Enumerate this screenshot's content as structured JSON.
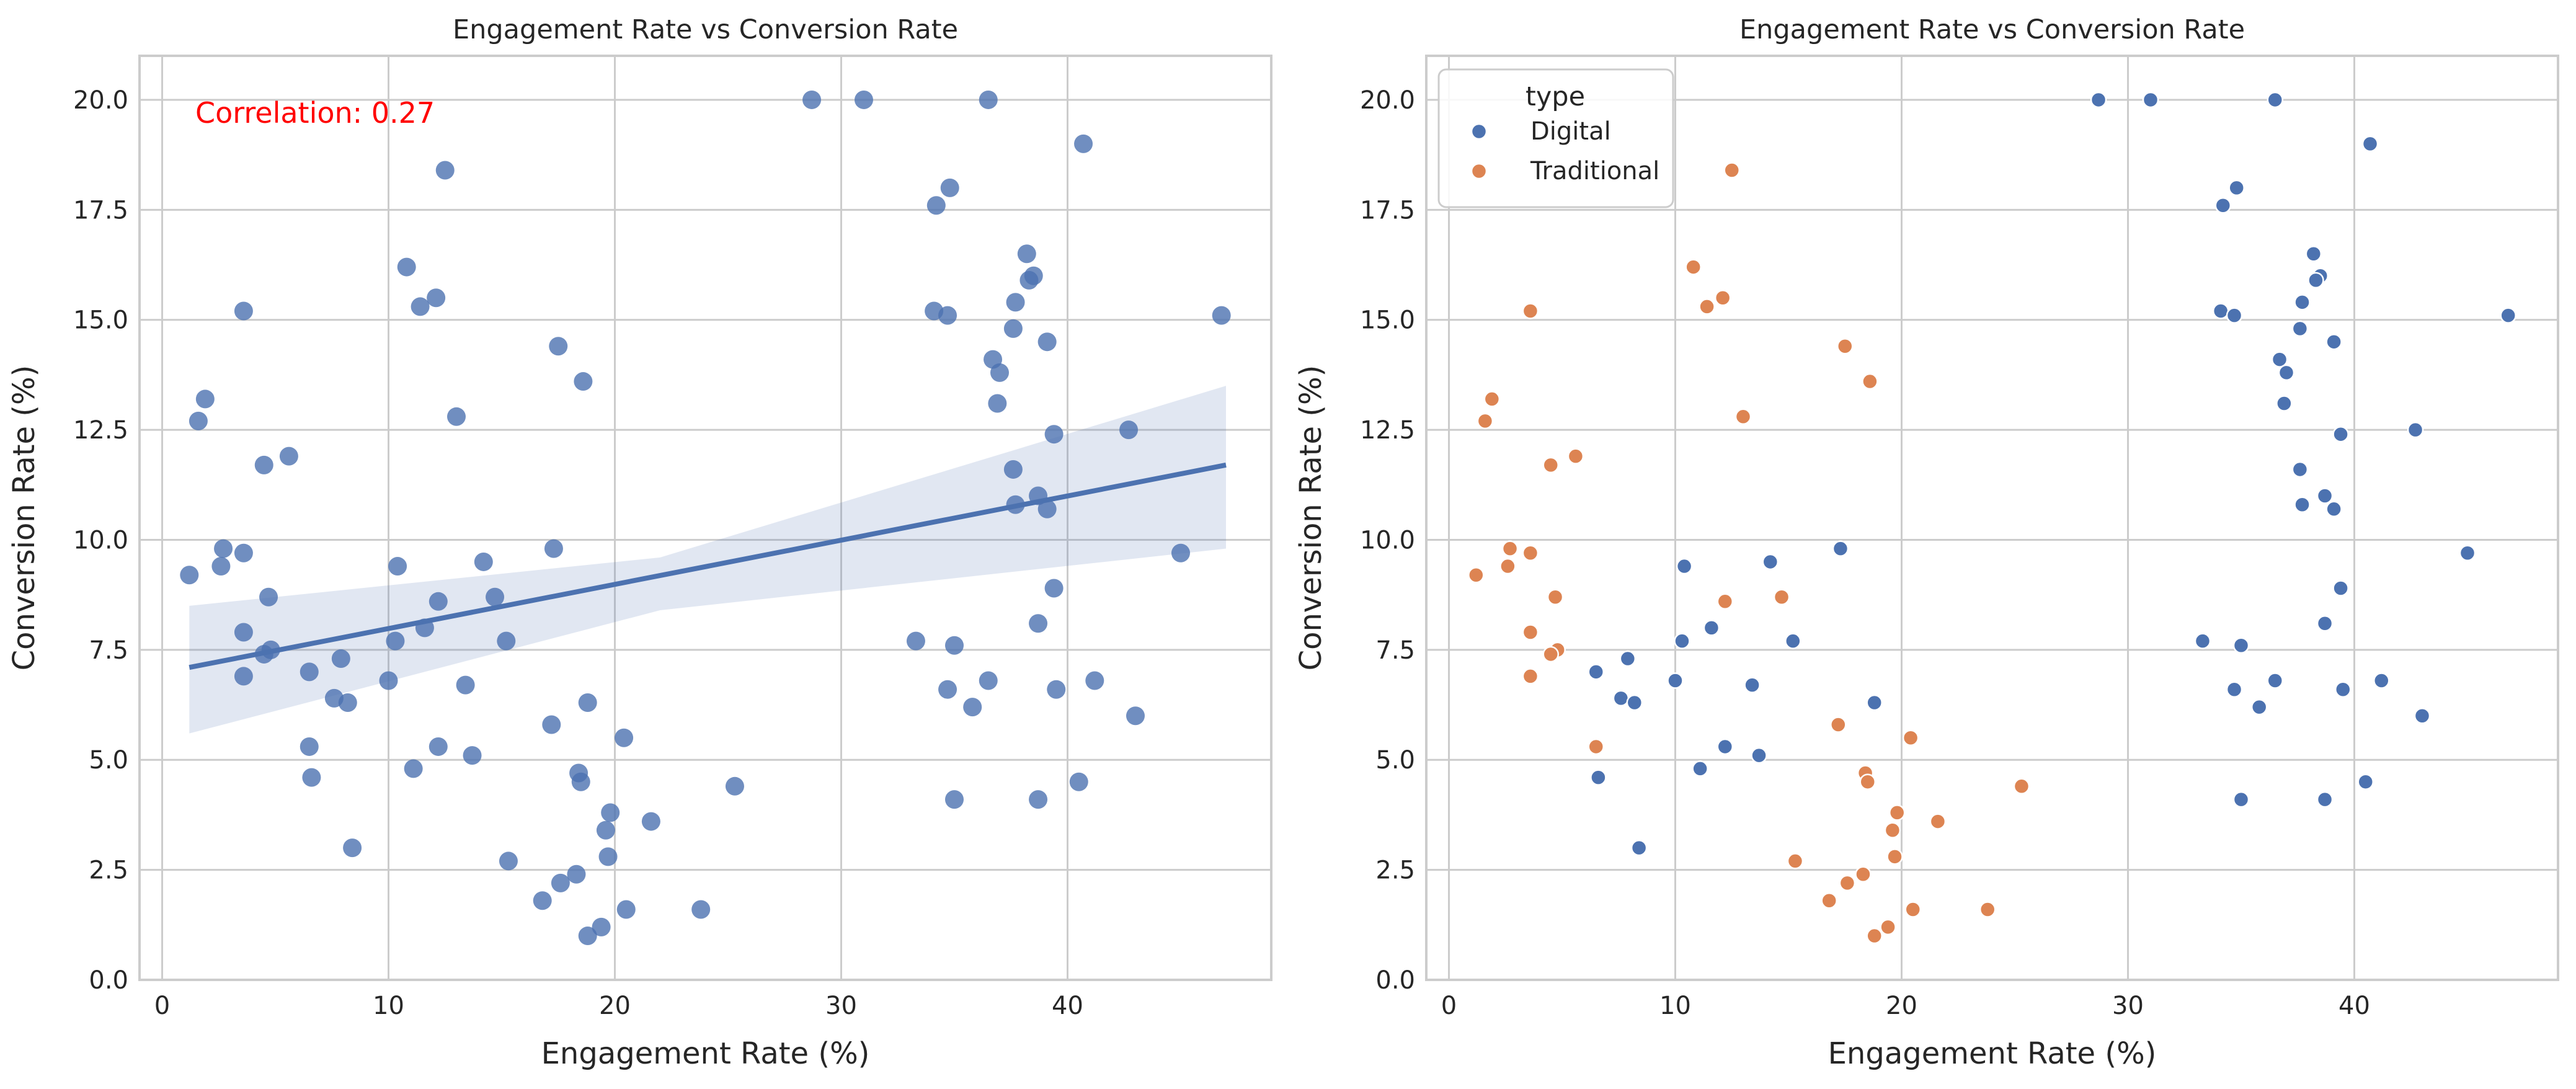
{
  "chart_data": [
    {
      "type": "scatter",
      "title": "Engagement Rate vs Conversion Rate",
      "xlabel": "Engagement Rate (%)",
      "ylabel": "Conversion Rate (%)",
      "xlim": [
        -1,
        49
      ],
      "ylim": [
        0,
        21
      ],
      "xticks": [
        "0",
        "10",
        "20",
        "30",
        "40"
      ],
      "yticks": [
        "0.0",
        "2.5",
        "5.0",
        "7.5",
        "10.0",
        "12.5",
        "15.0",
        "17.5",
        "20.0"
      ],
      "grid": true,
      "annotation": {
        "text": "Correlation: 0.27",
        "color": "#ff0000"
      },
      "regression": {
        "x": [
          1.2,
          47
        ],
        "y": [
          7.1,
          11.7
        ],
        "ci_lower": [
          5.6,
          9.8
        ],
        "ci_upper": [
          8.5,
          13.5
        ],
        "ci_mid_x": 22,
        "ci_mid_lower": [
          8.4
        ],
        "ci_mid_upper": [
          9.6
        ],
        "color": "#4c72b0"
      },
      "series": [
        {
          "color": "#4c72b0",
          "points": "all"
        }
      ]
    },
    {
      "type": "scatter",
      "title": "Engagement Rate vs Conversion Rate",
      "xlabel": "Engagement Rate (%)",
      "ylabel": "Conversion Rate (%)",
      "xlim": [
        -1,
        49
      ],
      "ylim": [
        0,
        21
      ],
      "xticks": [
        "0",
        "10",
        "20",
        "30",
        "40"
      ],
      "yticks": [
        "0.0",
        "2.5",
        "5.0",
        "7.5",
        "10.0",
        "12.5",
        "15.0",
        "17.5",
        "20.0"
      ],
      "grid": true,
      "legend": {
        "title": "type",
        "placement": "top-left"
      },
      "series": [
        {
          "name": "Digital",
          "color": "#4c72b0",
          "x": [
            28.7,
            31.0,
            36.5,
            40.7,
            34.8,
            34.2,
            38.2,
            38.5,
            38.3,
            37.7,
            34.1,
            34.7,
            46.8,
            37.6,
            39.1,
            36.7,
            37.0,
            36.9,
            42.7,
            39.4,
            37.6,
            38.7,
            37.7,
            39.1,
            45.0,
            39.4,
            33.3,
            35.0,
            38.7,
            34.7,
            36.5,
            39.5,
            41.2,
            35.8,
            43.0,
            40.5,
            35.0,
            38.7,
            10.4,
            17.3,
            14.2,
            11.6,
            15.2,
            10.3,
            13.4,
            7.9,
            6.5,
            10.0,
            7.6,
            8.2,
            18.8,
            12.2,
            13.7,
            6.6,
            11.1,
            8.4
          ],
          "y": [
            20.0,
            20.0,
            20.0,
            19.0,
            18.0,
            17.6,
            16.5,
            16.0,
            15.9,
            15.4,
            15.2,
            15.1,
            15.1,
            14.8,
            14.5,
            14.1,
            13.8,
            13.1,
            12.5,
            12.4,
            11.6,
            11.0,
            10.8,
            10.7,
            9.7,
            8.9,
            7.7,
            7.6,
            8.1,
            6.6,
            6.8,
            6.6,
            6.8,
            6.2,
            6.0,
            4.5,
            4.1,
            4.1,
            9.4,
            9.8,
            9.5,
            8.0,
            7.7,
            7.7,
            6.7,
            7.3,
            7.0,
            6.8,
            6.4,
            6.3,
            6.3,
            5.3,
            5.1,
            4.6,
            4.8,
            3.0
          ]
        },
        {
          "name": "Traditional",
          "color": "#dd8452",
          "x": [
            12.5,
            10.8,
            11.4,
            12.1,
            3.6,
            17.5,
            1.9,
            18.6,
            1.6,
            13.0,
            5.6,
            4.5,
            2.7,
            3.6,
            1.2,
            2.6,
            14.7,
            12.2,
            4.7,
            3.6,
            4.8,
            4.5,
            3.6,
            17.2,
            6.5,
            20.4,
            18.4,
            18.5,
            25.3,
            19.8,
            21.6,
            19.6,
            19.7,
            15.3,
            17.6,
            18.3,
            16.8,
            20.5,
            23.8,
            19.4,
            18.8
          ],
          "y": [
            18.4,
            16.2,
            15.3,
            15.5,
            15.2,
            14.4,
            13.2,
            13.6,
            12.7,
            12.8,
            11.9,
            11.7,
            9.8,
            9.7,
            9.2,
            9.4,
            8.7,
            8.6,
            8.7,
            7.9,
            7.5,
            7.4,
            6.9,
            5.8,
            5.3,
            5.5,
            4.7,
            4.5,
            4.4,
            3.8,
            3.6,
            3.4,
            2.8,
            2.7,
            2.2,
            2.4,
            1.8,
            1.6,
            1.6,
            1.2,
            1.0
          ]
        }
      ]
    }
  ]
}
